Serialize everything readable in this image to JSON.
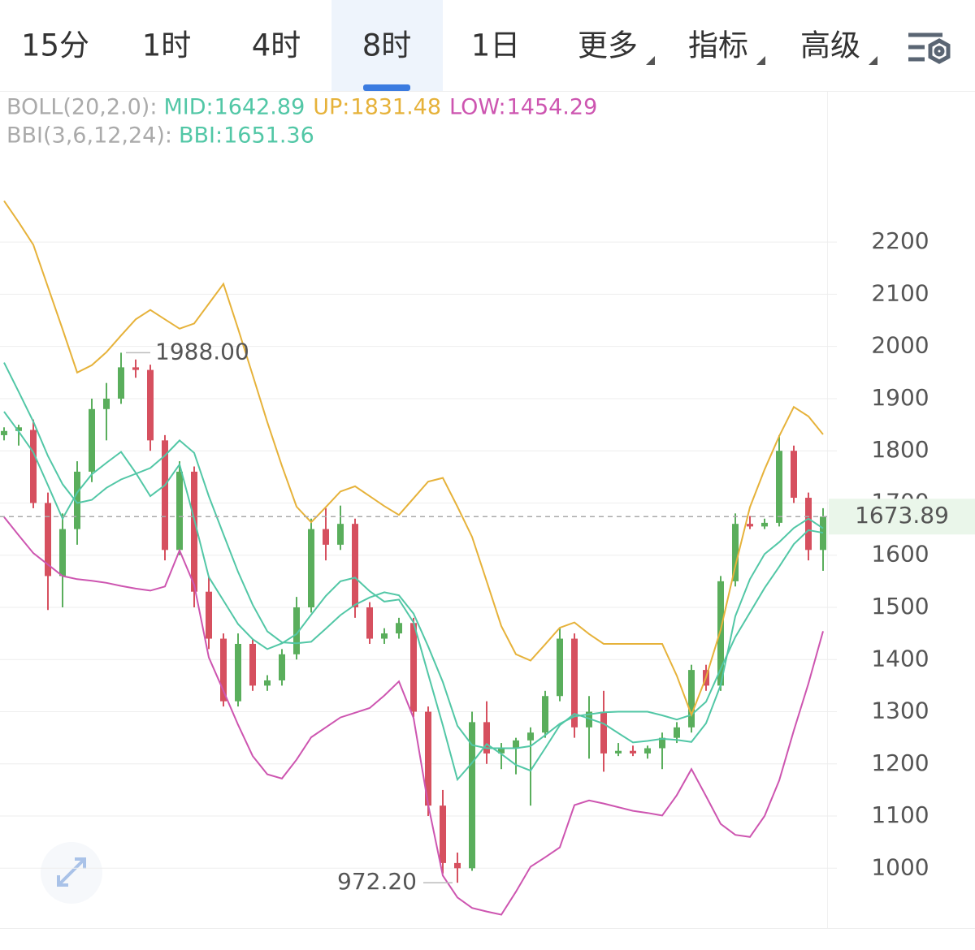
{
  "tabs": [
    "15分",
    "1时",
    "4时",
    "8时",
    "1日",
    "更多",
    "指标",
    "高级"
  ],
  "active_tab": 3,
  "chart_data": {
    "type": "candlestick",
    "up_color": "#5aae5c",
    "down_color": "#d6505f",
    "open": [
      1830,
      1838,
      1840,
      1700,
      1560,
      1650,
      1760,
      1880,
      1900,
      1960,
      1955,
      1820,
      1610,
      1760,
      1530,
      1440,
      1320,
      1430,
      1350,
      1360,
      1410,
      1500,
      1650,
      1620,
      1660,
      1500,
      1440,
      1450,
      1470,
      1300,
      1120,
      1010,
      1000,
      1280,
      1220,
      1230,
      1245,
      1260,
      1330,
      1440,
      1270,
      1300,
      1220,
      1225,
      1220,
      1230,
      1250,
      1270,
      1380,
      1350,
      1550,
      1660,
      1655,
      1662,
      1800,
      1710,
      1610
    ],
    "high": [
      1845,
      1850,
      1860,
      1720,
      1680,
      1780,
      1900,
      1930,
      1988,
      1975,
      1965,
      1830,
      1780,
      1770,
      1560,
      1450,
      1450,
      1440,
      1370,
      1420,
      1520,
      1670,
      1690,
      1695,
      1670,
      1510,
      1460,
      1480,
      1480,
      1310,
      1150,
      1030,
      1300,
      1320,
      1240,
      1250,
      1270,
      1340,
      1460,
      1450,
      1330,
      1340,
      1240,
      1235,
      1235,
      1260,
      1280,
      1390,
      1390,
      1560,
      1680,
      1675,
      1670,
      1830,
      1810,
      1720,
      1690
    ],
    "low": [
      1820,
      1810,
      1690,
      1495,
      1500,
      1620,
      1740,
      1820,
      1890,
      1940,
      1800,
      1590,
      1600,
      1500,
      1420,
      1310,
      1310,
      1340,
      1340,
      1350,
      1400,
      1490,
      1590,
      1610,
      1480,
      1430,
      1430,
      1440,
      1290,
      1100,
      990,
      972.2,
      995,
      1200,
      1190,
      1180,
      1120,
      1250,
      1320,
      1250,
      1210,
      1185,
      1215,
      1215,
      1210,
      1190,
      1240,
      1260,
      1340,
      1340,
      1540,
      1650,
      1650,
      1655,
      1700,
      1590,
      1570
    ],
    "close": [
      1838,
      1845,
      1700,
      1560,
      1650,
      1760,
      1880,
      1900,
      1960,
      1955,
      1820,
      1610,
      1760,
      1530,
      1440,
      1320,
      1430,
      1350,
      1360,
      1410,
      1500,
      1650,
      1620,
      1660,
      1500,
      1440,
      1450,
      1470,
      1300,
      1120,
      1010,
      1000,
      1280,
      1220,
      1230,
      1245,
      1260,
      1330,
      1440,
      1270,
      1300,
      1220,
      1225,
      1220,
      1230,
      1250,
      1270,
      1380,
      1350,
      1550,
      1660,
      1655,
      1662,
      1800,
      1710,
      1610,
      1673.89
    ],
    "ylim": [
      890,
      2485
    ],
    "yticks": [
      1000,
      1100,
      1200,
      1300,
      1400,
      1500,
      1600,
      1700,
      1800,
      1900,
      2000,
      2100,
      2200
    ],
    "grid": true,
    "high_label": "1988.00",
    "low_label": "972.20",
    "indicators": [
      {
        "label": "BOLL(20,2.0):",
        "series": [
          {
            "name": "MID:",
            "color": "#52c7a6",
            "values": [
              1969,
              1913,
              1856,
              1790,
              1736,
              1700,
              1706,
              1729,
              1745,
              1756,
              1767,
              1791,
              1820,
              1796,
              1713,
              1640,
              1568,
              1505,
              1454,
              1433,
              1431,
              1434,
              1459,
              1485,
              1505,
              1519,
              1529,
              1523,
              1488,
              1425,
              1357,
              1273,
              1236,
              1230,
              1230,
              1230,
              1234,
              1255,
              1277,
              1291,
              1295,
              1299,
              1300,
              1300,
              1300,
              1293,
              1285,
              1294,
              1319,
              1382,
              1443,
              1490,
              1537,
              1578,
              1621,
              1648,
              1642.89
            ]
          },
          {
            "name": "UP:",
            "color": "#e6b23a",
            "values": [
              2279,
              2238,
              2195,
              2114,
              2033,
              1950,
              1964,
              1989,
              2021,
              2052,
              2070,
              2052,
              2034,
              2044,
              2082,
              2120,
              2034,
              1945,
              1855,
              1771,
              1693,
              1663,
              1692,
              1722,
              1732,
              1713,
              1694,
              1677,
              1709,
              1741,
              1748,
              1693,
              1635,
              1550,
              1464,
              1410,
              1398,
              1429,
              1461,
              1471,
              1449,
              1430,
              1430,
              1430,
              1430,
              1430,
              1369,
              1294,
              1366,
              1457,
              1579,
              1692,
              1764,
              1828,
              1884,
              1866,
              1831.48
            ]
          },
          {
            "name": "LOW:",
            "color": "#cd55b0",
            "values": [
              1673,
              1638,
              1604,
              1582,
              1560,
              1554,
              1551,
              1547,
              1541,
              1536,
              1532,
              1540,
              1609,
              1543,
              1404,
              1340,
              1275,
              1215,
              1180,
              1172,
              1208,
              1251,
              1270,
              1289,
              1298,
              1307,
              1331,
              1358,
              1288,
              1122,
              986,
              944,
              924,
              917,
              911,
              955,
              1003,
              1021,
              1040,
              1121,
              1130,
              1124,
              1117,
              1110,
              1106,
              1101,
              1140,
              1190,
              1138,
              1085,
              1064,
              1060,
              1100,
              1168,
              1264,
              1354,
              1454.29
            ]
          }
        ]
      },
      {
        "label": "BBI(3,6,12,24):",
        "series": [
          {
            "name": "BBI:",
            "color": "#52c7a6",
            "values": [
              1875,
              1837,
              1797,
              1734,
              1670,
              1720,
              1755,
              1777,
              1798,
              1758,
              1713,
              1734,
              1774,
              1669,
              1558,
              1513,
              1468,
              1439,
              1420,
              1431,
              1449,
              1486,
              1522,
              1550,
              1557,
              1531,
              1511,
              1515,
              1471,
              1372,
              1274,
              1170,
              1202,
              1238,
              1219,
              1198,
              1187,
              1230,
              1274,
              1296,
              1287,
              1277,
              1259,
              1241,
              1244,
              1248,
              1246,
              1242,
              1278,
              1351,
              1483,
              1554,
              1602,
              1625,
              1652,
              1670,
              1651.36
            ]
          }
        ]
      }
    ]
  }
}
